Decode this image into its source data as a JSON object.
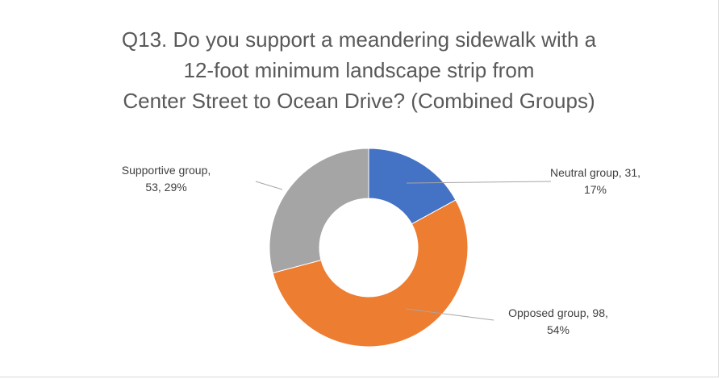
{
  "chart_data": {
    "type": "pie",
    "variant": "doughnut",
    "title_lines": [
      "Q13. Do you support a meandering sidewalk with a",
      "12-foot minimum landscape strip from",
      "Center Street to Ocean Drive? (Combined Groups)"
    ],
    "categories": [
      "Neutral group",
      "Opposed group",
      "Supportive group"
    ],
    "values": [
      31,
      98,
      53
    ],
    "percents": [
      "17%",
      "54%",
      "29%"
    ],
    "colors": [
      "#4472c4",
      "#ed7d31",
      "#a5a5a5"
    ],
    "data_labels": [
      [
        "Neutral group, 31,",
        "17%"
      ],
      [
        "Opposed group, 98,",
        "54%"
      ],
      [
        "Supportive group,",
        "53, 29%"
      ]
    ],
    "legend": "none"
  }
}
